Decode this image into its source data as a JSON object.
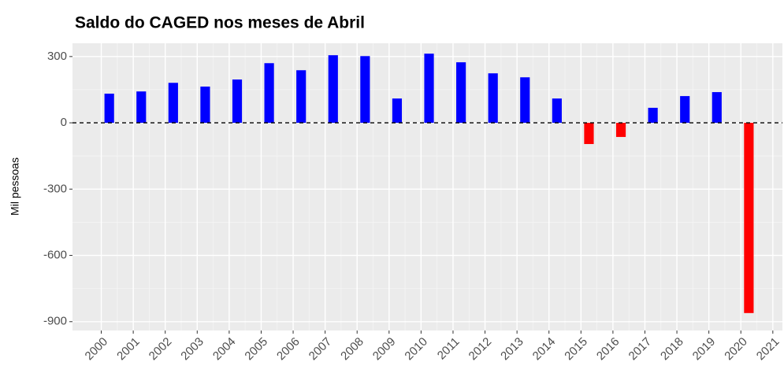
{
  "chart_data": {
    "type": "bar",
    "title": "Saldo do CAGED nos meses de Abril",
    "ylabel": "Mil pessoas",
    "x": [
      2000.25,
      2001.25,
      2002.25,
      2003.25,
      2004.25,
      2005.25,
      2006.25,
      2007.25,
      2008.25,
      2009.25,
      2010.25,
      2011.25,
      2012.25,
      2013.25,
      2014.25,
      2015.25,
      2016.25,
      2017.25,
      2018.25,
      2019.25,
      2020.25
    ],
    "values": [
      132,
      142,
      181,
      164,
      196,
      270,
      238,
      306,
      302,
      110,
      313,
      274,
      224,
      206,
      110,
      -96,
      -64,
      68,
      121,
      139,
      -861
    ],
    "positive_color": "#0000ff",
    "negative_color": "#ff0000",
    "xlim": [
      1999.1,
      2021.3
    ],
    "xticks": [
      2000,
      2001,
      2002,
      2003,
      2004,
      2005,
      2006,
      2007,
      2008,
      2009,
      2010,
      2011,
      2012,
      2013,
      2014,
      2015,
      2016,
      2017,
      2018,
      2019,
      2020,
      2021
    ],
    "ylim": [
      -940,
      360
    ],
    "yticks": [
      300,
      0,
      -300,
      -600,
      -900
    ],
    "reference_line": 0,
    "grid": true
  }
}
